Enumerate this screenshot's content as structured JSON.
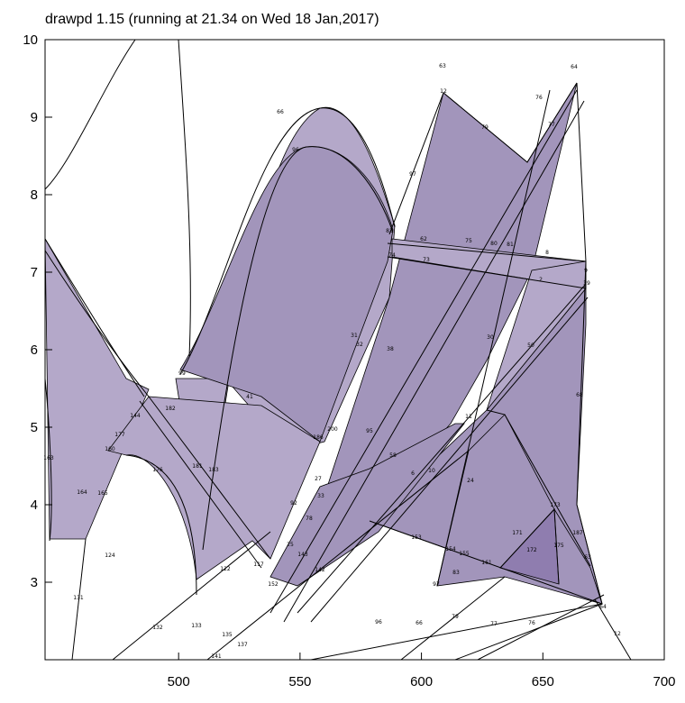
{
  "title": "drawpd 1.15 (running at 21.34 on Wed 18 Jan,2017)",
  "axes": {
    "x_ticks": [
      "500",
      "550",
      "600",
      "650",
      "700"
    ],
    "y_ticks": [
      "10",
      "9",
      "8",
      "7",
      "6",
      "5",
      "4",
      "3"
    ],
    "x_range": [
      445,
      700
    ],
    "y_range": [
      2,
      10
    ]
  },
  "fill_colors": {
    "light": "#b4a8c9",
    "medium": "#a295bb",
    "dark": "#8f7daf"
  },
  "field_labels": [
    "63",
    "64",
    "12",
    "76",
    "77",
    "79",
    "66",
    "96",
    "97",
    "83",
    "62",
    "73",
    "74",
    "75",
    "80",
    "81",
    "8",
    "9",
    "2",
    "39",
    "30",
    "31",
    "32",
    "38",
    "50",
    "68",
    "41",
    "99",
    "182",
    "144",
    "177",
    "160",
    "163",
    "164",
    "165",
    "176",
    "181",
    "183",
    "186",
    "200",
    "95",
    "58",
    "6",
    "10",
    "11",
    "24",
    "27",
    "92",
    "33",
    "78",
    "25",
    "117",
    "122",
    "124",
    "131",
    "132",
    "133",
    "135",
    "137",
    "141",
    "142",
    "143",
    "152",
    "153",
    "154",
    "155",
    "161",
    "171",
    "172",
    "173",
    "175",
    "187"
  ]
}
